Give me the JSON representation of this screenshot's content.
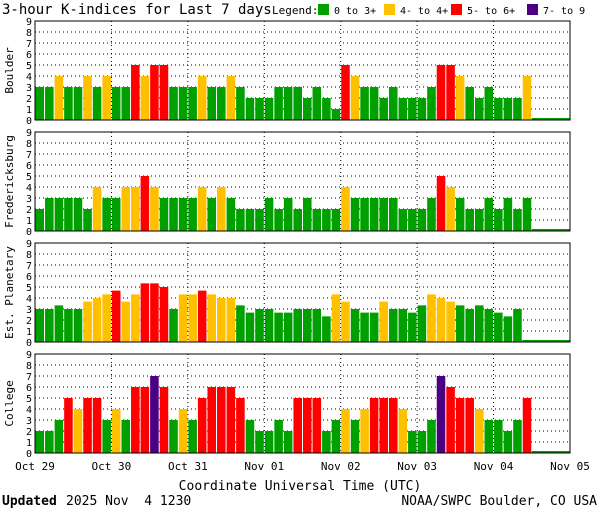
{
  "chart_data": {
    "type": "bar",
    "title": "3-hour K-indices for Last 7 days",
    "legend": {
      "label": "Legend:",
      "items": [
        {
          "label": "0 to 3+",
          "color": "#00a000"
        },
        {
          "label": "4- to 4+",
          "color": "#ffc000"
        },
        {
          "label": "5- to 6+",
          "color": "#ff0000"
        },
        {
          "label": "7- to 9",
          "color": "#4b0082"
        }
      ],
      "placement": "top-right"
    },
    "xlabel": "Coordinate Universal Time (UTC)",
    "x_ticks": [
      "Oct 29",
      "Oct 30",
      "Oct 31",
      "Nov 01",
      "Nov 02",
      "Nov 03",
      "Nov 04",
      "Nov 05"
    ],
    "ylim": [
      0,
      9
    ],
    "y_ticks": [
      "0",
      "1",
      "2",
      "3",
      "4",
      "5",
      "6",
      "7",
      "8",
      "9"
    ],
    "grid": "dotted",
    "panels": [
      {
        "name": "Boulder",
        "values": [
          3,
          3,
          4,
          3,
          3,
          4,
          3,
          4,
          3,
          3,
          5,
          4,
          5,
          5,
          3,
          3,
          3,
          4,
          3,
          3,
          4,
          3,
          2,
          2,
          2,
          3,
          3,
          3,
          2,
          3,
          2,
          1,
          5,
          4,
          3,
          3,
          2,
          3,
          2,
          2,
          2,
          3,
          5,
          5,
          4,
          3,
          2,
          3,
          2,
          2,
          2,
          4
        ]
      },
      {
        "name": "Fredericksburg",
        "values": [
          2,
          3,
          3,
          3,
          3,
          2,
          4,
          3,
          3,
          4,
          4,
          5,
          4,
          3,
          3,
          3,
          3,
          4,
          3,
          4,
          3,
          2,
          2,
          2,
          3,
          2,
          3,
          2,
          3,
          2,
          2,
          2,
          4,
          3,
          3,
          3,
          3,
          3,
          2,
          2,
          2,
          3,
          5,
          4,
          3,
          2,
          2,
          3,
          2,
          3,
          2,
          3
        ]
      },
      {
        "name": "Est. Planetary",
        "values": [
          3,
          3,
          3.33,
          3,
          3,
          3.67,
          4,
          4.33,
          4.67,
          3.67,
          4.33,
          5.33,
          5.33,
          5,
          3,
          4.33,
          4.33,
          4.67,
          4.33,
          4,
          4,
          3.33,
          2.67,
          3,
          3,
          2.67,
          2.67,
          3,
          3,
          3,
          2.33,
          4.33,
          3.67,
          3,
          2.67,
          2.67,
          3.67,
          3,
          3,
          2.67,
          3.33,
          4.33,
          4,
          3.67,
          3.33,
          3,
          3.33,
          3,
          2.67,
          2.33,
          3
        ]
      },
      {
        "name": "College",
        "values": [
          2,
          2,
          3,
          5,
          4,
          5,
          5,
          3,
          4,
          3,
          6,
          6,
          7,
          6,
          3,
          4,
          3,
          5,
          6,
          6,
          6,
          5,
          3,
          2,
          2,
          3,
          2,
          5,
          5,
          5,
          2,
          3,
          4,
          3,
          4,
          5,
          5,
          5,
          4,
          2,
          2,
          3,
          7,
          6,
          5,
          5,
          4,
          3,
          3,
          2,
          3,
          5
        ]
      }
    ]
  },
  "footer": {
    "updated_label": "Updated",
    "updated_value": "2025 Nov  4 1230",
    "credit": "NOAA/SWPC Boulder, CO USA"
  }
}
